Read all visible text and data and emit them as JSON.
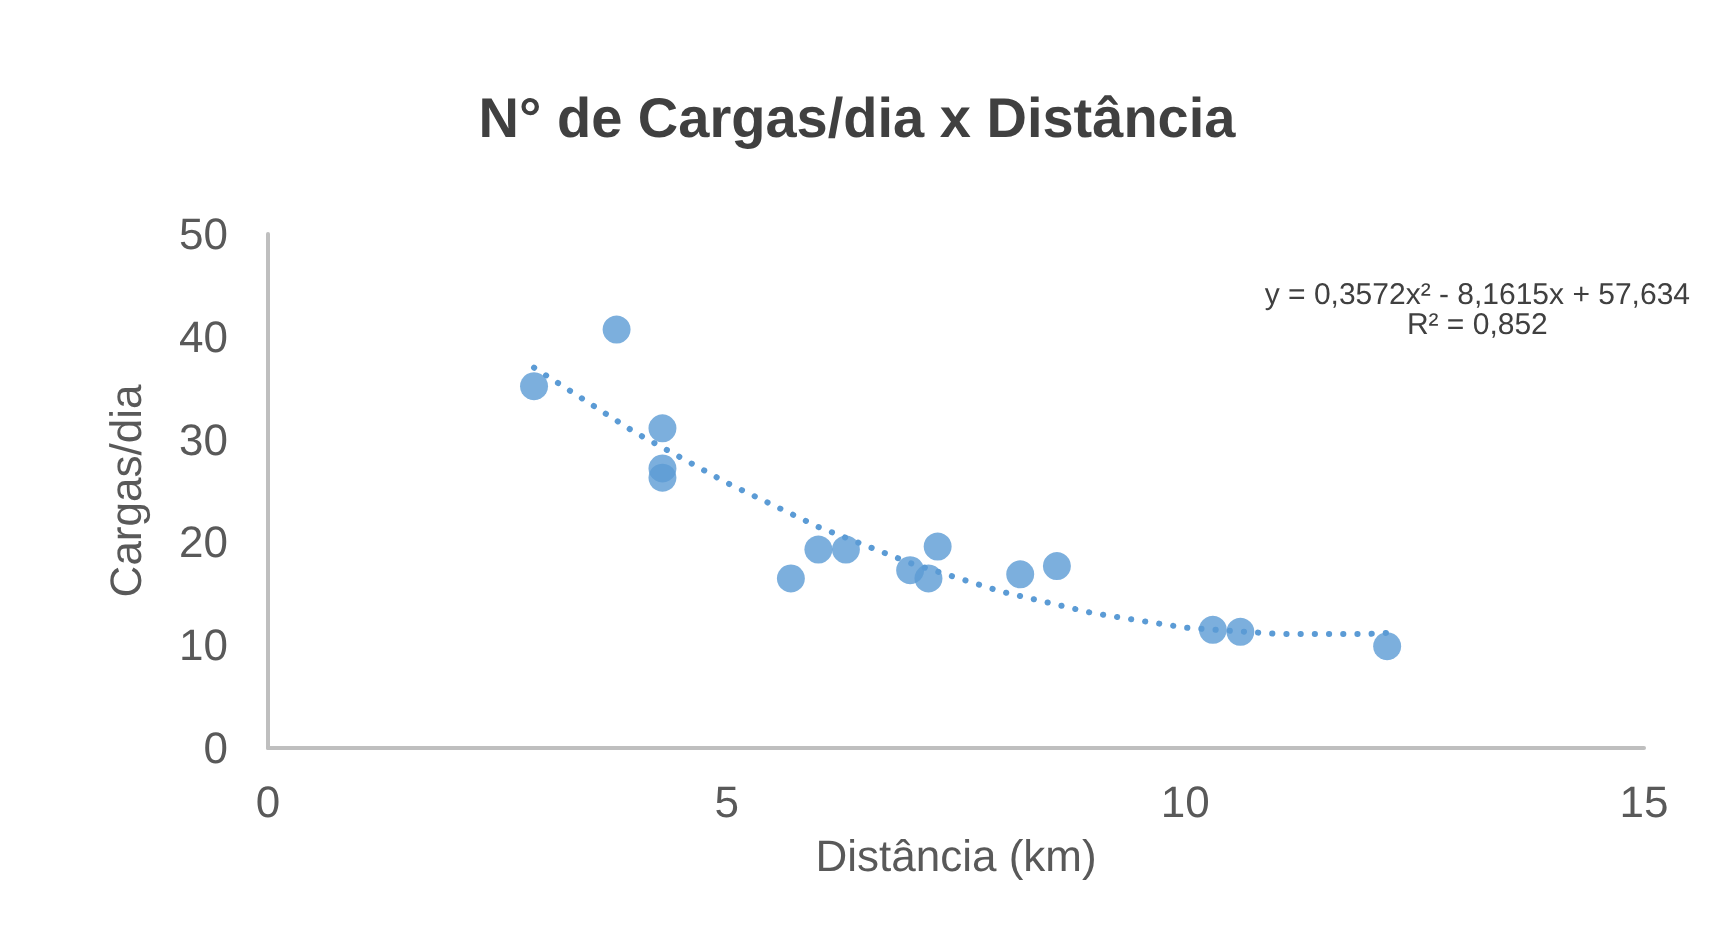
{
  "chart_data": {
    "type": "scatter",
    "title": "N° de Cargas/dia x Distância",
    "xlabel": "Distância (km)",
    "ylabel": "Cargas/dia",
    "xlim": [
      0,
      15
    ],
    "xticks": [
      0,
      5,
      10,
      15
    ],
    "ylim": [
      0,
      50
    ],
    "yticks": [
      0,
      10,
      20,
      30,
      40,
      50
    ],
    "grid": false,
    "marker": "circle",
    "annotations": [
      "y = 0,3572x² - 8,1615x + 57,634\nR² = 0,852"
    ],
    "series": [
      {
        "color": "#5b9bd5",
        "x": [
          2.9,
          3.8,
          4.3,
          4.3,
          4.3,
          5.7,
          6.0,
          6.3,
          7.0,
          7.2,
          7.3,
          8.2,
          8.6,
          10.3,
          10.6,
          12.2
        ],
        "values": [
          35.2,
          40.7,
          31.1,
          27.2,
          26.3,
          16.5,
          19.3,
          19.3,
          17.3,
          16.5,
          19.6,
          16.9,
          17.7,
          11.5,
          11.3,
          9.9
        ]
      },
      {
        "type": "line",
        "color": "#5b9bd5",
        "line_style": "dotted",
        "marker": "none",
        "x": [
          2.9,
          4,
          5,
          6,
          7,
          8,
          9,
          10,
          11,
          12,
          12.2
        ],
        "values": [
          37.0,
          30.7,
          25.8,
          21.5,
          18.0,
          15.2,
          13.1,
          11.7,
          11.1,
          11.1,
          11.2
        ]
      }
    ]
  }
}
